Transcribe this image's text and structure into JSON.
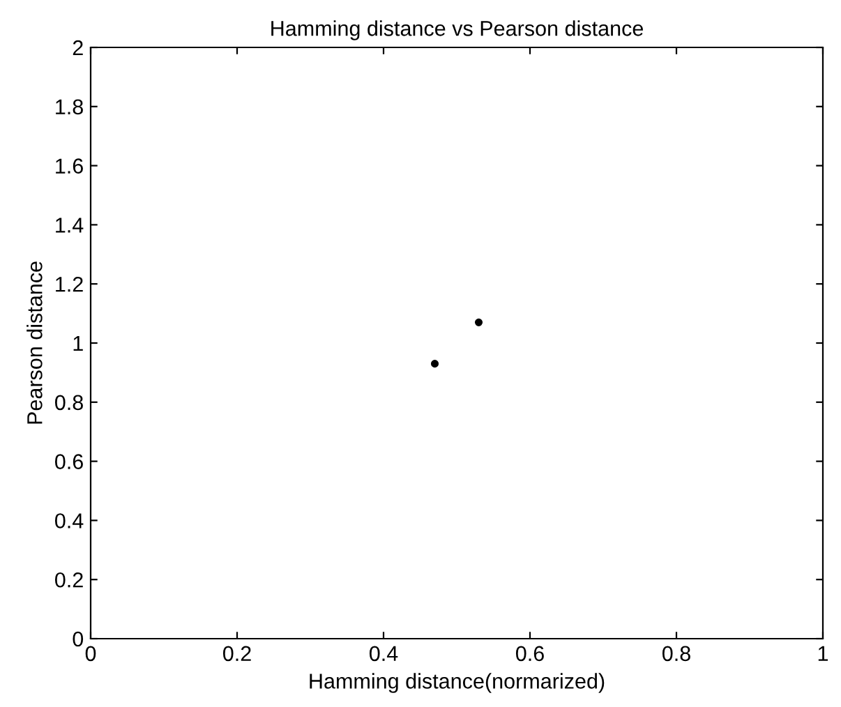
{
  "chart_data": {
    "type": "scatter",
    "title": "Hamming distance vs Pearson distance",
    "xlabel": "Hamming distance(normarized)",
    "ylabel": "Pearson distance",
    "x": [
      0.47,
      0.53
    ],
    "values": [
      0.93,
      1.07
    ],
    "color": "#000000",
    "marker": "circle",
    "xlim": [
      0,
      1
    ],
    "xticks": [
      0,
      0.2,
      0.4,
      0.6,
      0.8,
      1
    ],
    "ylim": [
      0,
      2
    ],
    "yticks": [
      0,
      0.2,
      0.4,
      0.6,
      0.8,
      1,
      1.2,
      1.4,
      1.6,
      1.8,
      2
    ],
    "grid": false
  }
}
